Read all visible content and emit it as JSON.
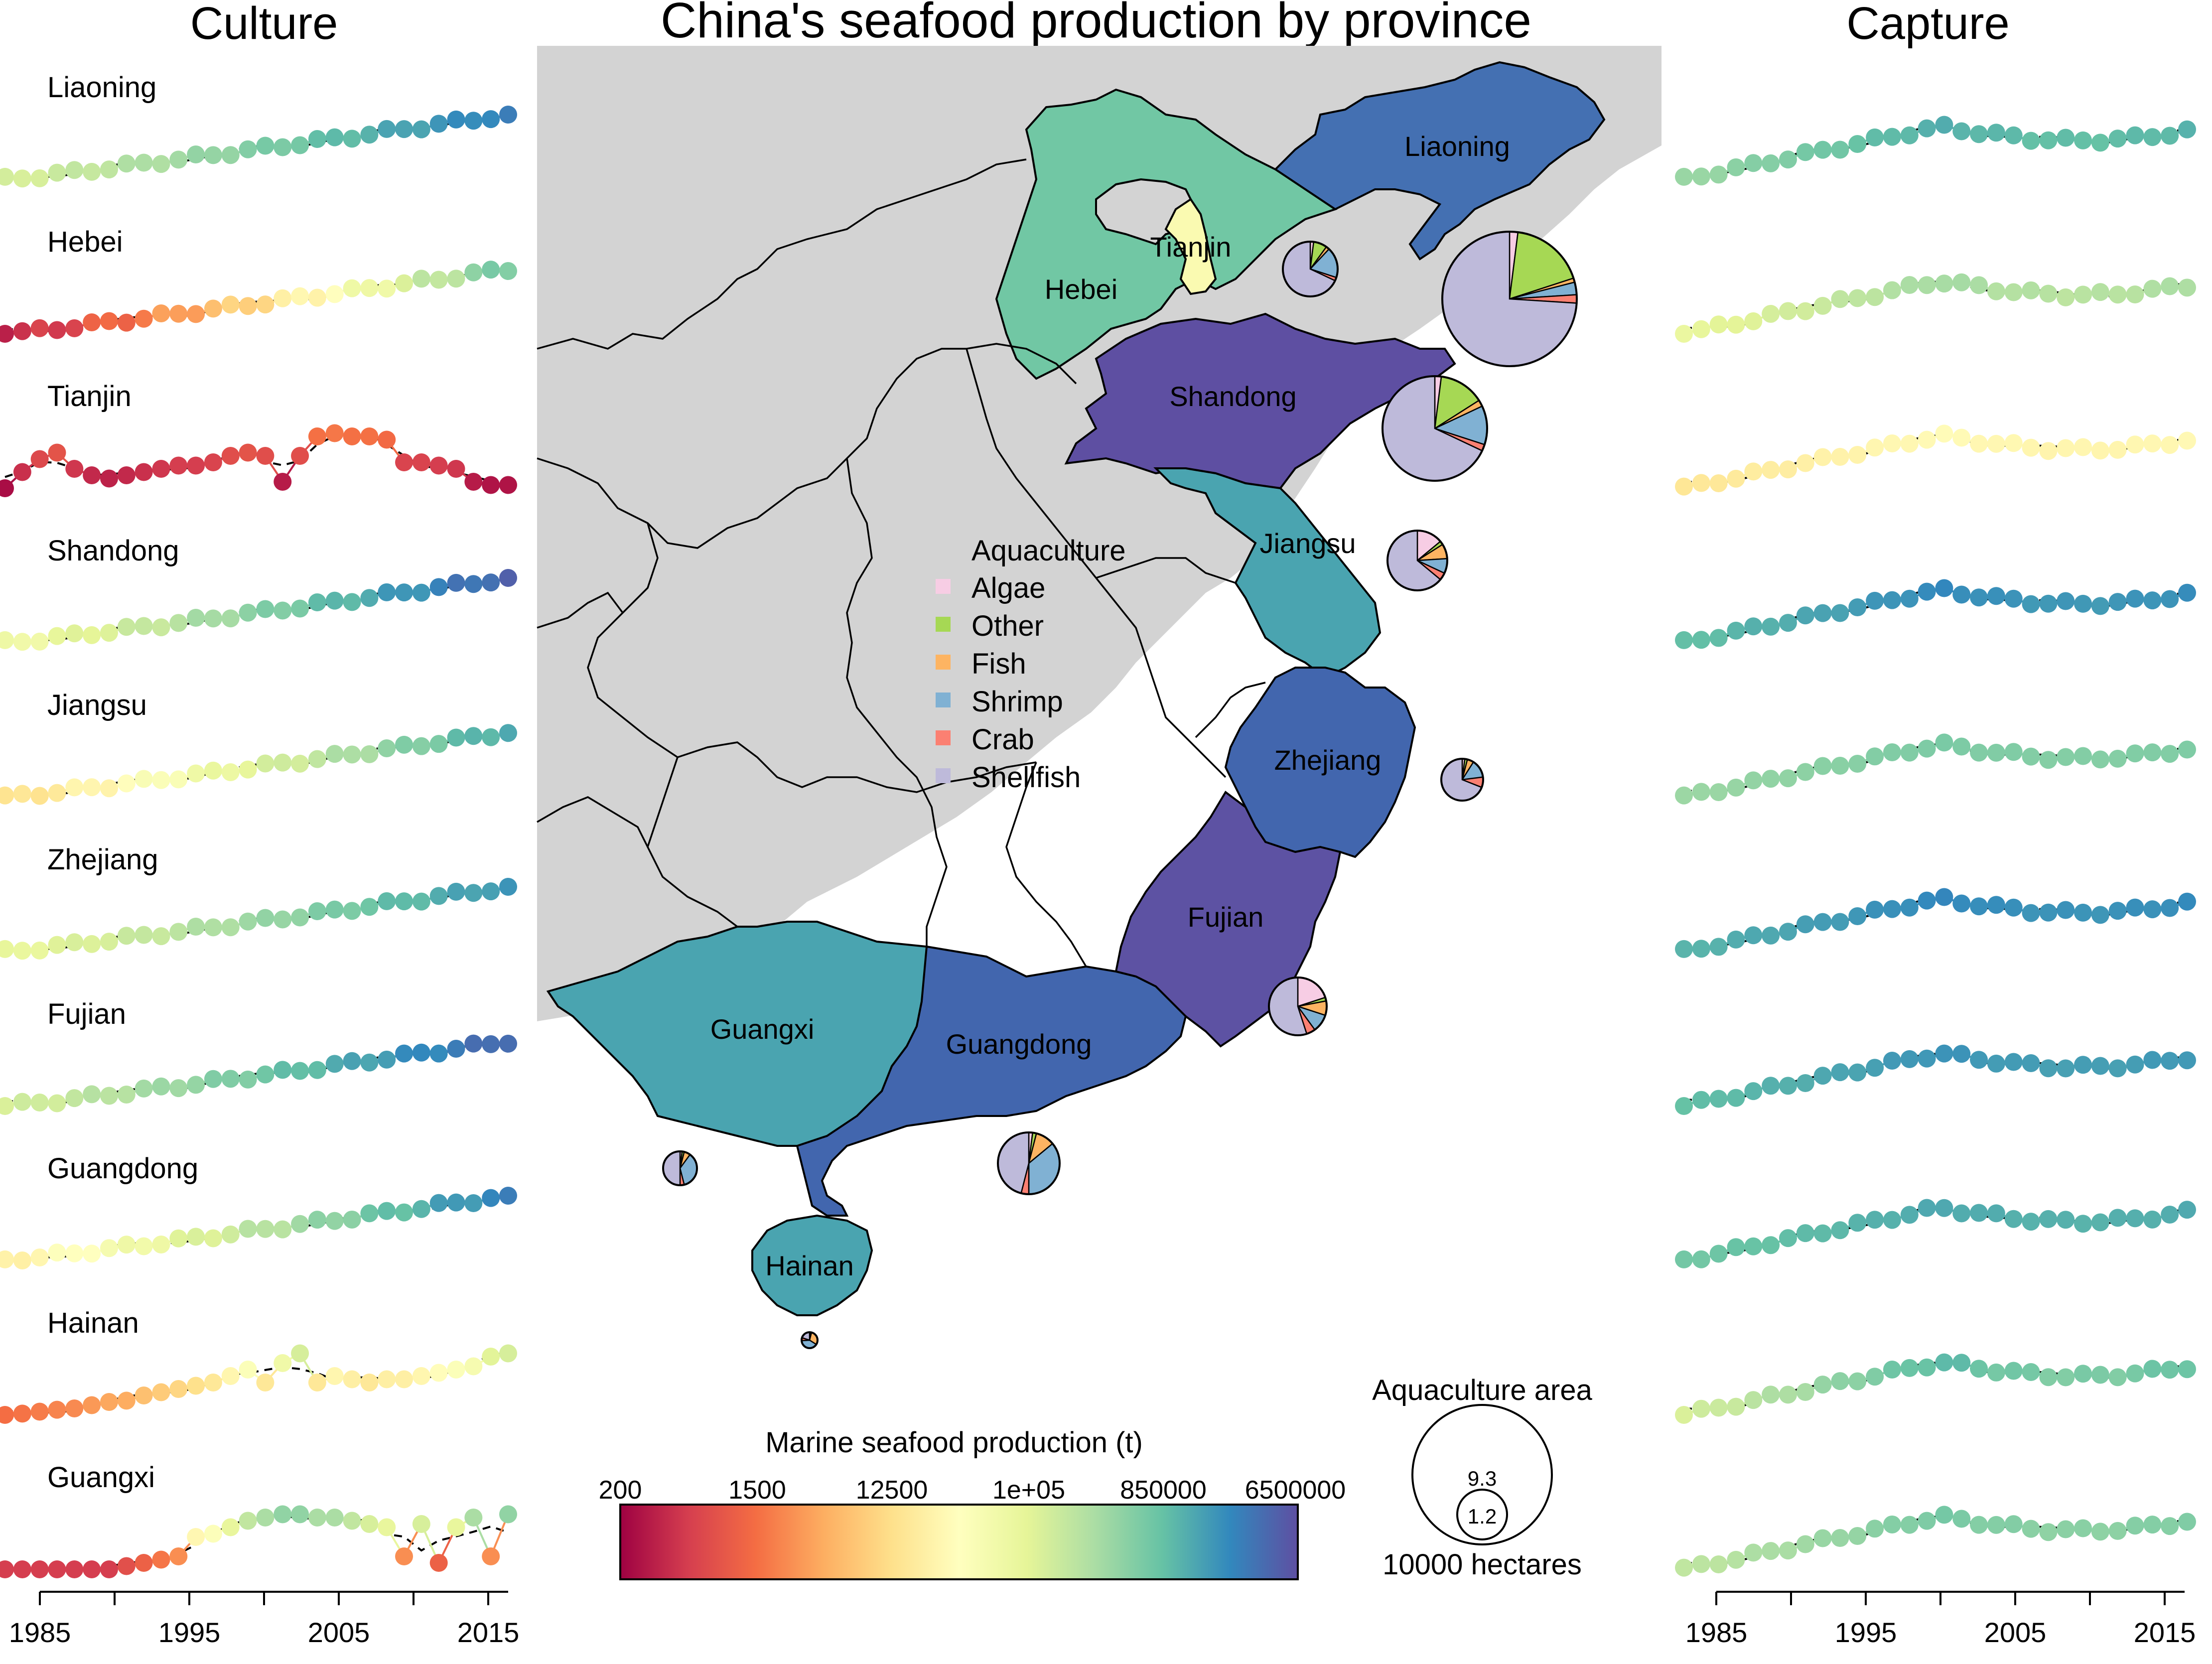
{
  "titles": {
    "culture": "Culture",
    "main": "China's seafood production by province",
    "capture": "Capture"
  },
  "provinces": [
    "Liaoning",
    "Hebei",
    "Tianjin",
    "Shandong",
    "Jiangsu",
    "Zhejiang",
    "Fujian",
    "Guangdong",
    "Hainan",
    "Guangxi"
  ],
  "map_labels": [
    "Liaoning",
    "Tianjin",
    "Hebei",
    "Shandong",
    "Jiangsu",
    "Zhejiang",
    "Fujian",
    "Guangxi",
    "Guangdong",
    "Hainan"
  ],
  "legend": {
    "title": "Aquaculture",
    "items": [
      {
        "label": "Algae",
        "color": "#f7cde4"
      },
      {
        "label": "Other",
        "color": "#a6d854"
      },
      {
        "label": "Fish",
        "color": "#fdb462"
      },
      {
        "label": "Shrimp",
        "color": "#80b1d3"
      },
      {
        "label": "Crab",
        "color": "#fb8072"
      },
      {
        "label": "Shellfish",
        "color": "#bebada"
      }
    ]
  },
  "colorbar": {
    "title": "Marine seafood production (t)",
    "ticks": [
      "200",
      "1500",
      "12500",
      "1e+05",
      "850000",
      "6500000"
    ],
    "palette": [
      "#9e0142",
      "#d53e4f",
      "#f46d43",
      "#fdae61",
      "#fee08b",
      "#ffffbf",
      "#e6f598",
      "#abdda4",
      "#66c2a5",
      "#3288bd",
      "#5e4fa2"
    ]
  },
  "area_legend": {
    "title": "Aquaculture area",
    "big": "9.3",
    "small": "1.2",
    "unit": "10000 hectares"
  },
  "x_ticks": [
    "1985",
    "1995",
    "2005",
    "2015"
  ],
  "colors": {
    "land": "#d3d3d3",
    "sea": "#ffffff",
    "Liaoning": "#4470b2",
    "Hebei": "#71c7a4",
    "Tianjin": "#fafab1",
    "Shandong": "#5e4fa2",
    "Jiangsu": "#4aa4b0",
    "Zhejiang": "#4266ae",
    "Fujian": "#5d52a3",
    "Guangxi": "#4aa4b0",
    "Guangdong": "#4266ae",
    "Hainan": "#4aa4b0"
  }
}
